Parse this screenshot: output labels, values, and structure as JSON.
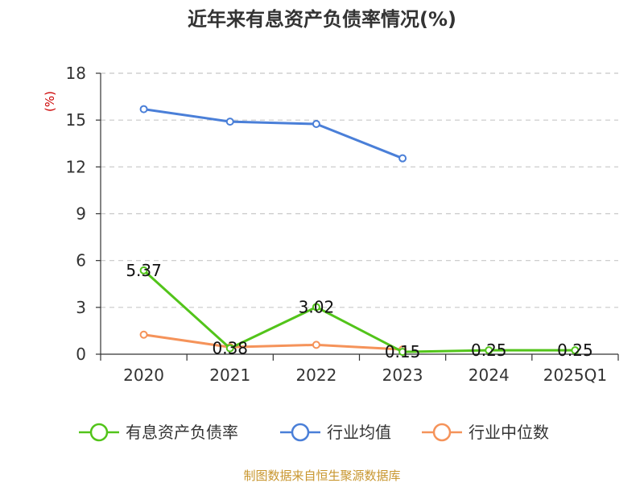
{
  "chart_data": {
    "type": "line",
    "title": "近年来有息资产负债率情况(%)",
    "ylabel": "(%)",
    "xlabel": "",
    "categories": [
      "2020",
      "2021",
      "2022",
      "2023",
      "2024",
      "2025Q1"
    ],
    "ylim": [
      0,
      18
    ],
    "yticks": [
      0,
      3,
      6,
      9,
      12,
      15,
      18
    ],
    "grid": true,
    "legend_position": "bottom",
    "series": [
      {
        "name": "有息资产负债率",
        "color": "#52c41a",
        "values": [
          5.37,
          0.38,
          3.02,
          0.15,
          0.25,
          0.25
        ],
        "labels": [
          "5.37",
          "0.38",
          "3.02",
          "0.15",
          "0.25",
          "0.25"
        ]
      },
      {
        "name": "行业均值",
        "color": "#4a7fd8",
        "values": [
          15.7,
          14.9,
          14.75,
          12.55,
          null,
          null
        ]
      },
      {
        "name": "行业中位数",
        "color": "#f5935a",
        "values": [
          1.25,
          0.45,
          0.6,
          0.3,
          null,
          null
        ]
      }
    ],
    "source": "制图数据来自恒生聚源数据库"
  }
}
